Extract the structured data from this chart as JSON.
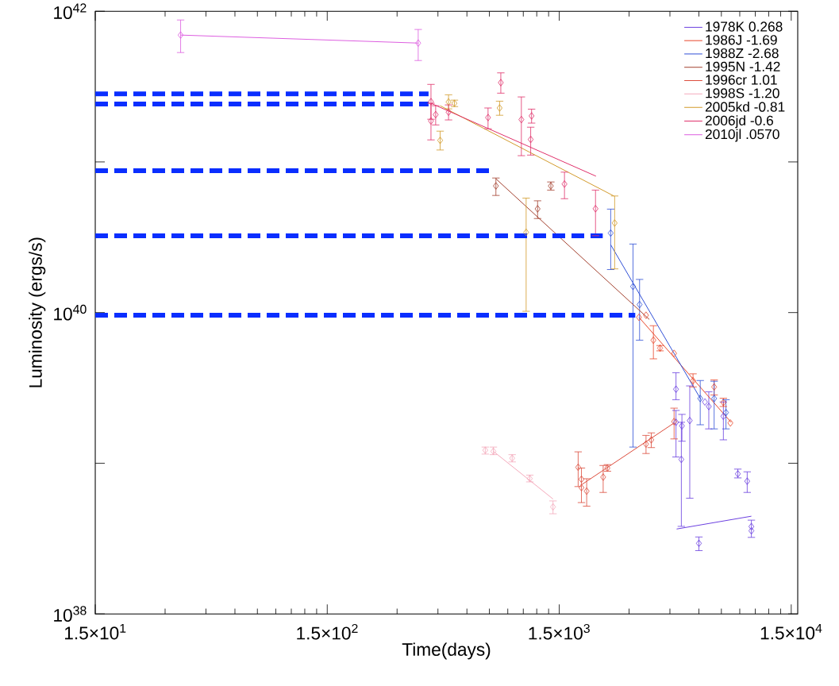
{
  "chart_data": {
    "type": "scatter",
    "xlabel": "Time(days)",
    "ylabel": "Luminosity (ergs/s)",
    "log": "xy",
    "xlim": [
      15,
      16000
    ],
    "ylim": [
      1e+38,
      1e+42
    ],
    "xticks": [
      {
        "value": 15,
        "label": "1.5×10$^{1}$"
      },
      {
        "value": 150,
        "label": "1.5×10$^{2}$"
      },
      {
        "value": 1500,
        "label": "1.5×10$^{3}$"
      },
      {
        "value": 15000,
        "label": "1.5×10$^{4}$"
      }
    ],
    "yticks": [
      {
        "value": 1e+38,
        "label": "10$^{38}$"
      },
      {
        "value": 1e+39,
        "label": null
      },
      {
        "value": 1e+40,
        "label": "10$^{40}$"
      },
      {
        "value": 1e+41,
        "label": null
      },
      {
        "value": 1e+42,
        "label": "10$^{42}$"
      }
    ],
    "legend": "top right",
    "series": [
      {
        "color": "#6a3fe0",
        "marker": "diamond",
        "x": [
          4780,
          4780,
          5070,
          5040,
          5480,
          6620,
          6370,
          7650,
          8830,
          9690,
          10100,
          10100,
          6000
        ],
        "values": [
          3.1e+39,
          1.87e+39,
          1.77e+39,
          1.06e+39,
          1.92e+39,
          2.38e+39,
          2.55e+39,
          2.05e+39,
          8.5e+38,
          7.6e+38,
          3.8e+38,
          3.56e+38,
          2.94e+38
        ],
        "errors": [
          [
            2.64e+39,
            3.99e+39
          ],
          [
            1.1e+39,
            2.24e+39
          ],
          [
            1.4e+39,
            2.11e+39
          ],
          [
            3.81e+38,
            1.87e+39
          ],
          [
            5.86e+38,
            3.26e+39
          ],
          [
            1.69e+39,
            2.98e+39
          ],
          null,
          [
            1.43e+39,
            2.55e+39
          ],
          [
            7.99e+38,
            9.14e+38
          ],
          [
            6.4e+38,
            8.77e+38
          ],
          [
            3.22e+38,
            4.19e+38
          ],
          null,
          [
            2.63e+38,
            3.24e+38
          ]
        ]
      },
      {
        "type": "line",
        "name": "1978K    0.268",
        "color": "#6a3fe0",
        "marker": "none",
        "x": [
          4810,
          10100
        ],
        "values": [
          3.66e+38,
          4.45e+38
        ]
      },
      {
        "color": "#e8462a",
        "marker": "diamond",
        "x": [
          3310,
          3550,
          3820,
          4080,
          4690,
          5660,
          6980,
          7650,
          8200
        ],
        "values": [
          9.3e+39,
          9.6e+39,
          6.56e+39,
          5.81e+39,
          5.36e+39,
          3.53e+39,
          3.21e+39,
          2.53e+39,
          1.85e+39
        ],
        "errors": [
          null,
          null,
          [
            4.93e+39,
            8.18e+39
          ],
          [
            5.57e+39,
            6.04e+39
          ],
          null,
          [
            3.21e+39,
            3.92e+39
          ],
          [
            2.84e+39,
            3.57e+39
          ],
          [
            2.38e+39,
            2.7e+39
          ],
          null
        ]
      },
      {
        "type": "line",
        "name": "1986J    -1.69",
        "color": "#e8462a",
        "marker": "none",
        "x": [
          3310,
          8260
        ],
        "values": [
          9.3e+39,
          1.87e+39
        ]
      },
      {
        "color": "#2f4fd6",
        "marker": "diamond",
        "x": [
          2500,
          3120,
          3330,
          6080,
          6980,
          7850
        ],
        "values": [
          3.37e+40,
          1.49e+40,
          1.13e+40,
          2.69e+39,
          2.69e+39,
          2.17e+39
        ],
        "errors": [
          [
            1.93e+40,
            4.86e+40
          ],
          [
            1.28e+39,
            2.85e+40
          ],
          [
            6.56e+39,
            1.66e+40
          ],
          [
            1.8e+39,
            3.54e+39
          ],
          [
            1.69e+39,
            3.5e+39
          ],
          [
            1.69e+39,
            2.64e+39
          ]
        ]
      },
      {
        "type": "line",
        "name": "1988Z    -2.68",
        "color": "#2f4fd6",
        "marker": "none",
        "x": [
          2500,
          6120
        ],
        "values": [
          2.82e+40,
          2.65e+39
        ]
      },
      {
        "color": "#a3402e",
        "marker": "diamond",
        "x": [
          800,
          1380,
          1210
        ],
        "values": [
          6.93e+40,
          6.93e+40,
          4.88e+40
        ],
        "errors": [
          [
            5.99e+40,
            7.82e+40
          ],
          [
            6.5e+40,
            7.36e+40
          ],
          [
            4.21e+40,
            5.52e+40
          ]
        ]
      },
      {
        "type": "line",
        "name": "1995N    -1.42",
        "color": "#a3402e",
        "marker": "none",
        "x": [
          800,
          3670
        ],
        "values": [
          7.73e+40,
          9e+39
        ]
      },
      {
        "color": "#dc4a3a",
        "marker": "diamond",
        "x": [
          1810,
          1870,
          1870,
          1970,
          2320,
          2420,
          3550,
          3740,
          4690
        ],
        "values": [
          9.4e+38,
          7.83e+38,
          6.89e+38,
          6.53e+38,
          8.09e+38,
          9.29e+38,
          1.34e+39,
          1.43e+39,
          1.89e+39
        ],
        "errors": [
          [
            7e+38,
            1.19e+39
          ],
          [
            5.48e+38,
            9.29e+38
          ],
          null,
          [
            5.19e+38,
            7.89e+38
          ],
          [
            6.4e+38,
            9.66e+38
          ],
          [
            8.85e+38,
            9.79e+38
          ],
          [
            1.16e+39,
            1.53e+39
          ],
          [
            1.27e+39,
            1.59e+39
          ],
          [
            1.45e+39,
            2.32e+39
          ]
        ]
      },
      {
        "type": "line",
        "name": "1996cr    1.01",
        "color": "#dc4a3a",
        "marker": "none",
        "x": [
          1880,
          4690
        ],
        "values": [
          7.23e+38,
          1.85e+39
        ]
      },
      {
        "color": "#f4a9bb",
        "marker": "diamond",
        "x": [
          720,
          780,
          940,
          1120,
          1410
        ],
        "values": [
          1.22e+39,
          1.2e+39,
          1.08e+39,
          7.91e+38,
          5.13e+38
        ],
        "errors": [
          [
            1.15e+39,
            1.28e+39
          ],
          [
            1.14e+39,
            1.28e+39
          ],
          [
            1.02e+39,
            1.14e+39
          ],
          [
            7.52e+38,
            8.34e+38
          ],
          [
            4.62e+38,
            5.62e+38
          ]
        ]
      },
      {
        "type": "line",
        "name": "1998S    -1.20",
        "color": "#f4a9bb",
        "marker": "none",
        "x": [
          780,
          1410
        ],
        "values": [
          1.2e+39,
          5.79e+38
        ]
      },
      {
        "color": "#d29a2a",
        "marker": "diamond",
        "x": [
          500,
          530,
          460,
          830,
          1080,
          2600
        ],
        "values": [
          2.5e+41,
          2.45e+41,
          1.39e+41,
          2.28e+41,
          3.41e+40,
          3.93e+40
        ],
        "errors": [
          [
            2.25e+41,
            2.79e+41
          ],
          [
            2.33e+41,
            2.57e+41
          ],
          [
            1.2e+41,
            1.6e+41
          ],
          [
            2.04e+41,
            2.53e+41
          ],
          [
            1.02e+40,
            5.75e+40
          ],
          [
            1.95e+40,
            5.94e+40
          ]
        ]
      },
      {
        "type": "line",
        "name": "2005kd  -0.81",
        "color": "#d29a2a",
        "marker": "none",
        "x": [
          460,
          2580
        ],
        "values": [
          2.36e+41,
          5.94e+40
        ]
      },
      {
        "color": "#e0306a",
        "marker": "diamond",
        "x": [
          420,
          420,
          440,
          500,
          740,
          840,
          1030,
          1140,
          1130,
          1580,
          2150
        ],
        "values": [
          2.51e+41,
          1.87e+41,
          2.06e+41,
          2.14e+41,
          1.97e+41,
          3.36e+41,
          1.91e+41,
          2.02e+41,
          1.41e+41,
          7.13e+40,
          4.89e+40
        ],
        "errors": [
          [
            1.92e+41,
            3.27e+41
          ],
          [
            1.4e+41,
            2.45e+41
          ],
          [
            1.76e+41,
            2.36e+41
          ],
          [
            1.9e+41,
            2.39e+41
          ],
          [
            1.66e+41,
            2.28e+41
          ],
          [
            2.86e+41,
            3.9e+41
          ],
          [
            1.1e+41,
            2.7e+41
          ],
          [
            1.81e+41,
            2.24e+41
          ],
          [
            1.11e+41,
            1.7e+41
          ],
          [
            5.7e+40,
            8.55e+40
          ],
          [
            3.24e+40,
            6.5e+40
          ]
        ]
      },
      {
        "type": "line",
        "name": "2006jd   -0.6",
        "color": "#e0306a",
        "marker": "none",
        "x": [
          420,
          2160
        ],
        "values": [
          2.45e+41,
          8.04e+40
        ]
      },
      {
        "color": "#dd5ee0",
        "marker": "diamond",
        "x": [
          35,
          370
        ],
        "values": [
          6.95e+41,
          6.15e+41
        ],
        "errors": [
          [
            5.32e+41,
            8.75e+41
          ],
          [
            4.71e+41,
            7.57e+41
          ]
        ]
      },
      {
        "type": "line",
        "name": "2010jl   .0570",
        "color": "#dd5ee0",
        "marker": "none",
        "x": [
          35,
          370
        ],
        "values": [
          6.95e+41,
          6.15e+41
        ]
      },
      {
        "type": "line",
        "color": "#0a2eff",
        "marker": "none",
        "line_style": "dashed",
        "x": [
          15,
          410
        ],
        "values": [
          2.83e+41,
          2.83e+41
        ]
      },
      {
        "type": "line",
        "color": "#0a2eff",
        "marker": "none",
        "line_style": "dashed",
        "x": [
          15,
          410
        ],
        "values": [
          2.42e+41,
          2.42e+41
        ]
      },
      {
        "type": "line",
        "color": "#0a2eff",
        "marker": "none",
        "line_style": "dashed",
        "x": [
          15,
          760
        ],
        "values": [
          8.73e+40,
          8.73e+40
        ]
      },
      {
        "type": "line",
        "color": "#0a2eff",
        "marker": "none",
        "line_style": "dashed",
        "x": [
          15,
          2310
        ],
        "values": [
          3.23e+40,
          3.23e+40
        ]
      },
      {
        "type": "line",
        "color": "#0a2eff",
        "marker": "none",
        "line_style": "dashed",
        "x": [
          15,
          3190
        ],
        "values": [
          9.6e+39,
          9.6e+39
        ]
      }
    ]
  }
}
